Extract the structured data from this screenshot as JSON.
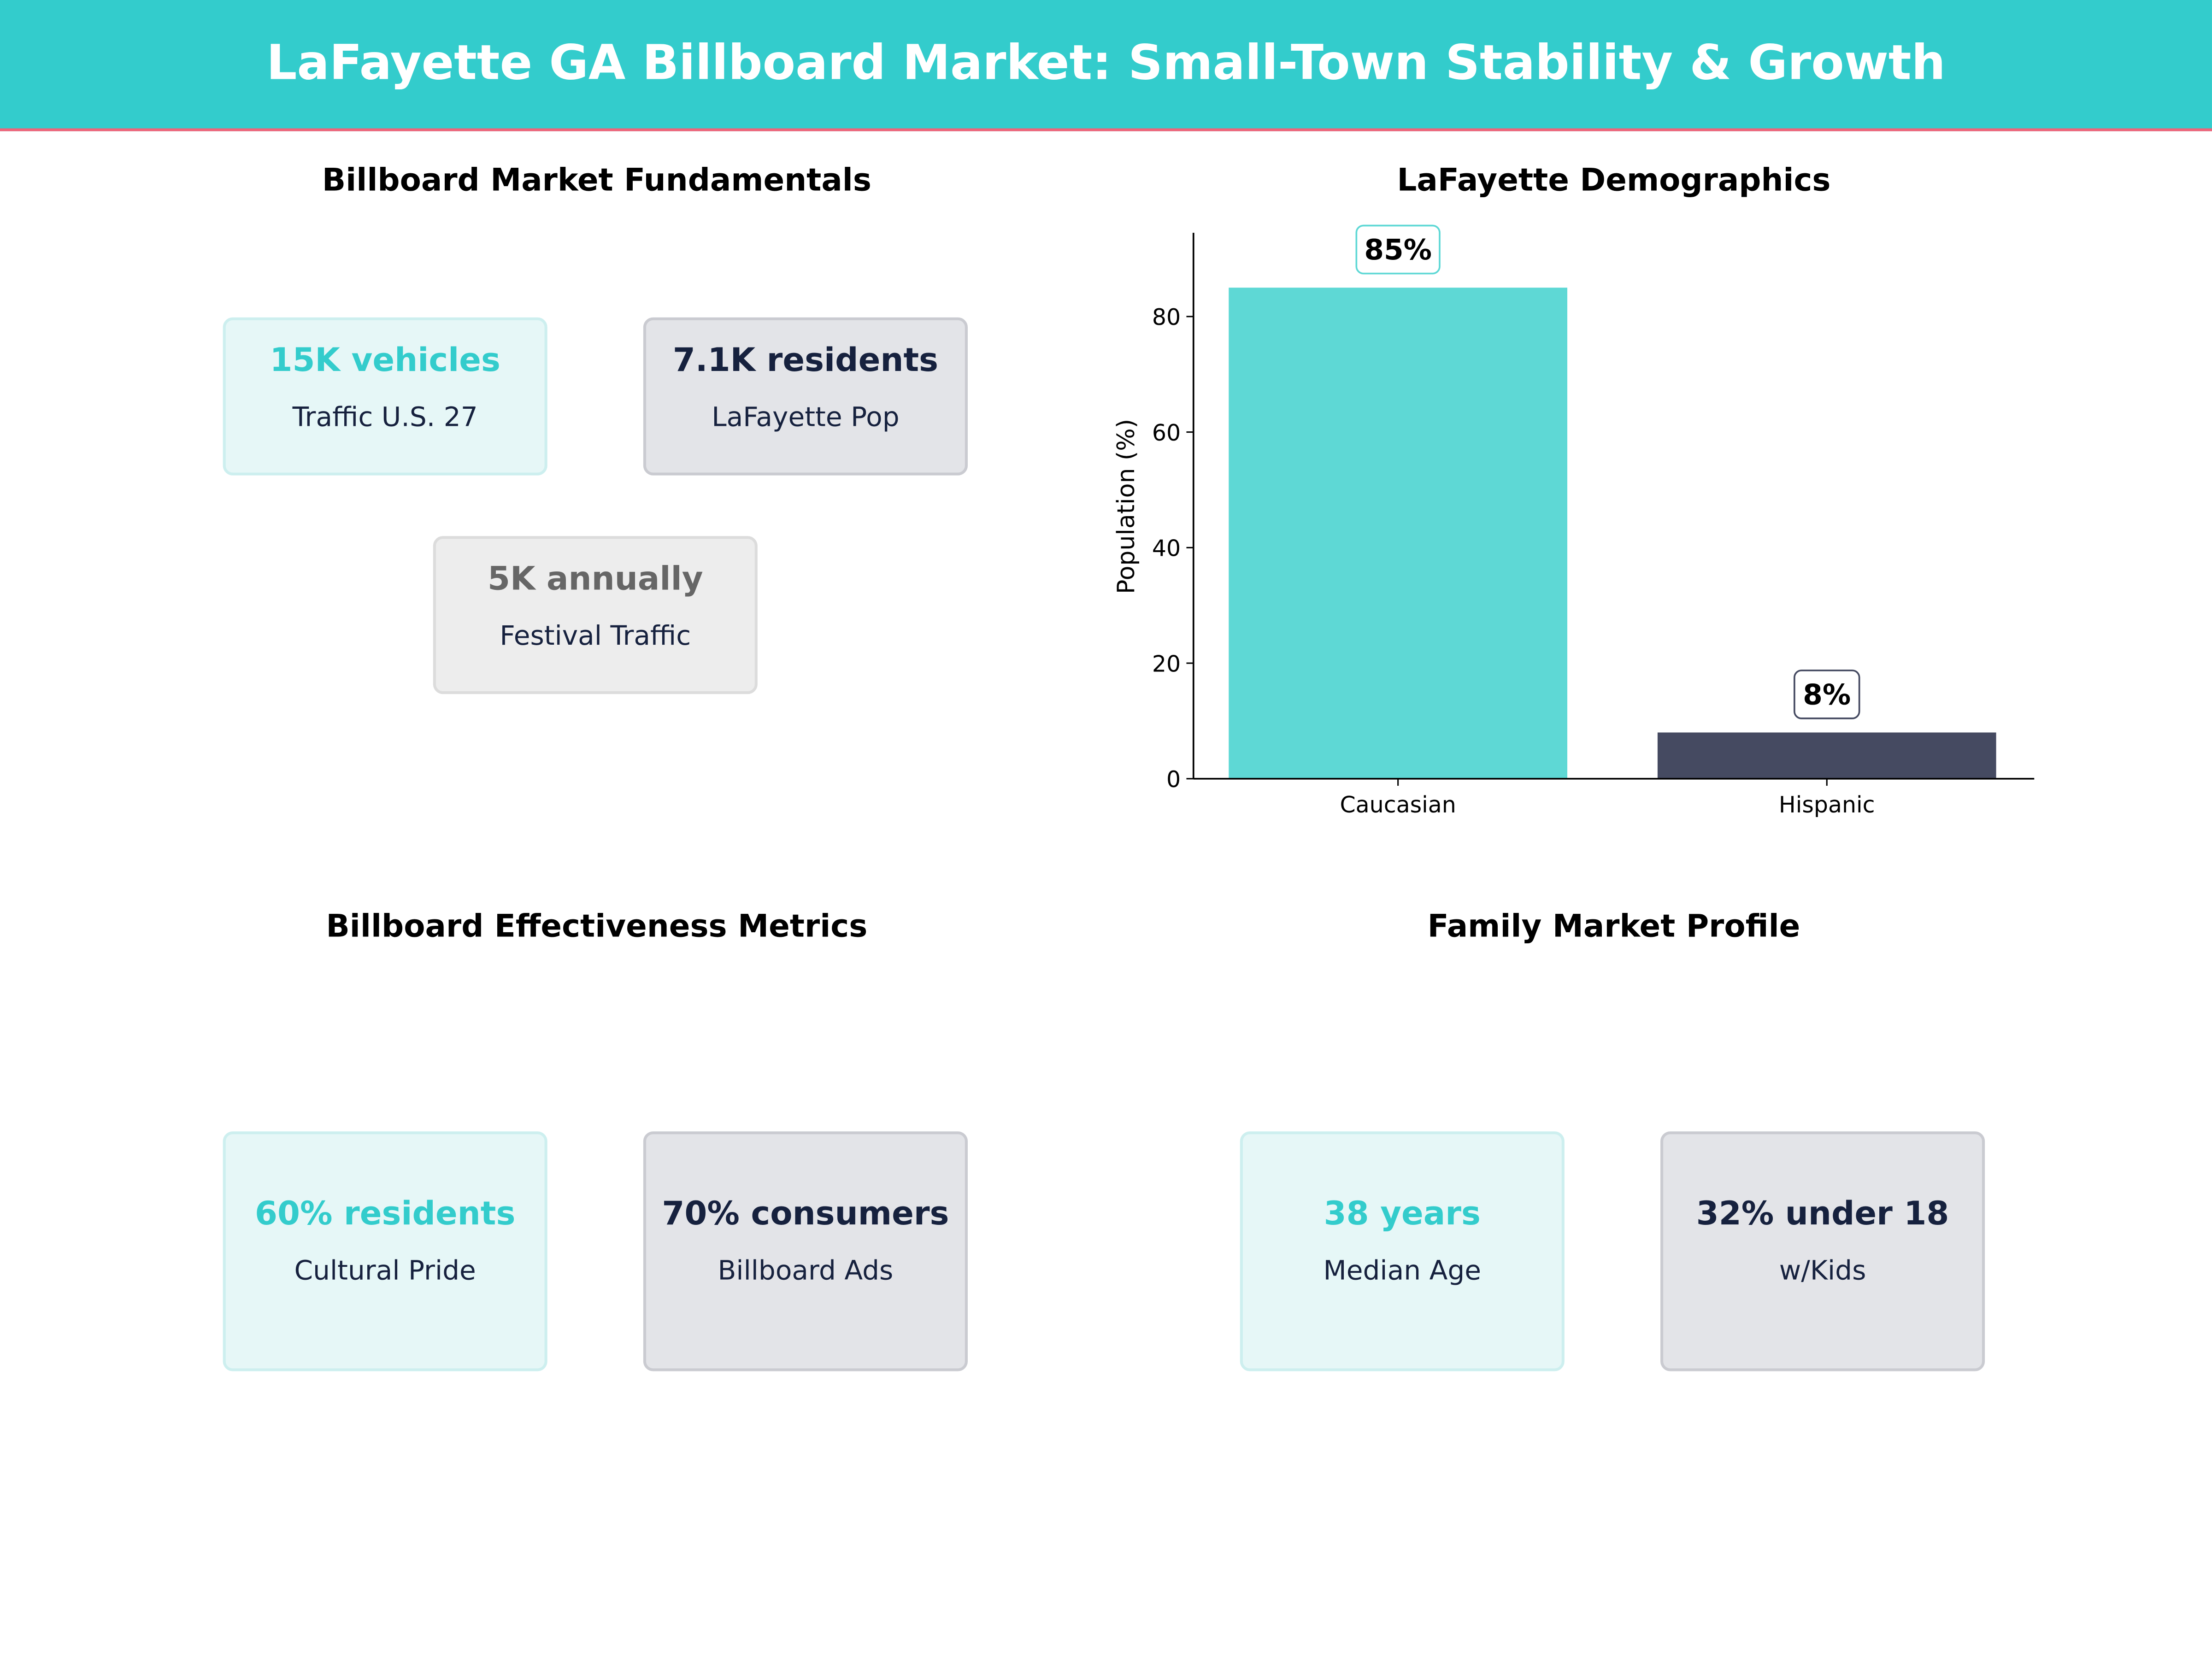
{
  "header": {
    "title": "LaFayette GA Billboard Market: Small-Town Stability & Growth"
  },
  "colors": {
    "accent": "#33CCCC",
    "dark": "#16213E",
    "stripe": "#F0647A",
    "bar_teal": "#5ED8D5",
    "bar_dark": "#454A61"
  },
  "panels": {
    "fundamentals": {
      "title": "Billboard Market Fundamentals",
      "cards": [
        {
          "value": "15K vehicles",
          "label": "Traffic U.S. 27"
        },
        {
          "value": "7.1K residents",
          "label": "LaFayette Pop"
        },
        {
          "value": "5K annually",
          "label": "Festival Traffic"
        }
      ]
    },
    "effectiveness": {
      "title": "Billboard Effectiveness Metrics",
      "cards": [
        {
          "value": "60% residents",
          "label": "Cultural Pride"
        },
        {
          "value": "70% consumers",
          "label": "Billboard Ads"
        }
      ]
    },
    "family": {
      "title": "Family Market Profile",
      "cards": [
        {
          "value": "38 years",
          "label": "Median Age"
        },
        {
          "value": "32% under 18",
          "label": "w/Kids"
        }
      ]
    }
  },
  "chart_data": {
    "type": "bar",
    "title": "LaFayette Demographics",
    "categories": [
      "Caucasian",
      "Hispanic"
    ],
    "values": [
      85,
      8
    ],
    "data_labels": [
      "85%",
      "8%"
    ],
    "colors": [
      "#5ED8D5",
      "#454A61"
    ],
    "xlabel": "",
    "ylabel": "Population (%)",
    "ylim": [
      0,
      94.5
    ],
    "yticks": [
      0,
      20,
      40,
      60,
      80
    ],
    "grid": false
  }
}
